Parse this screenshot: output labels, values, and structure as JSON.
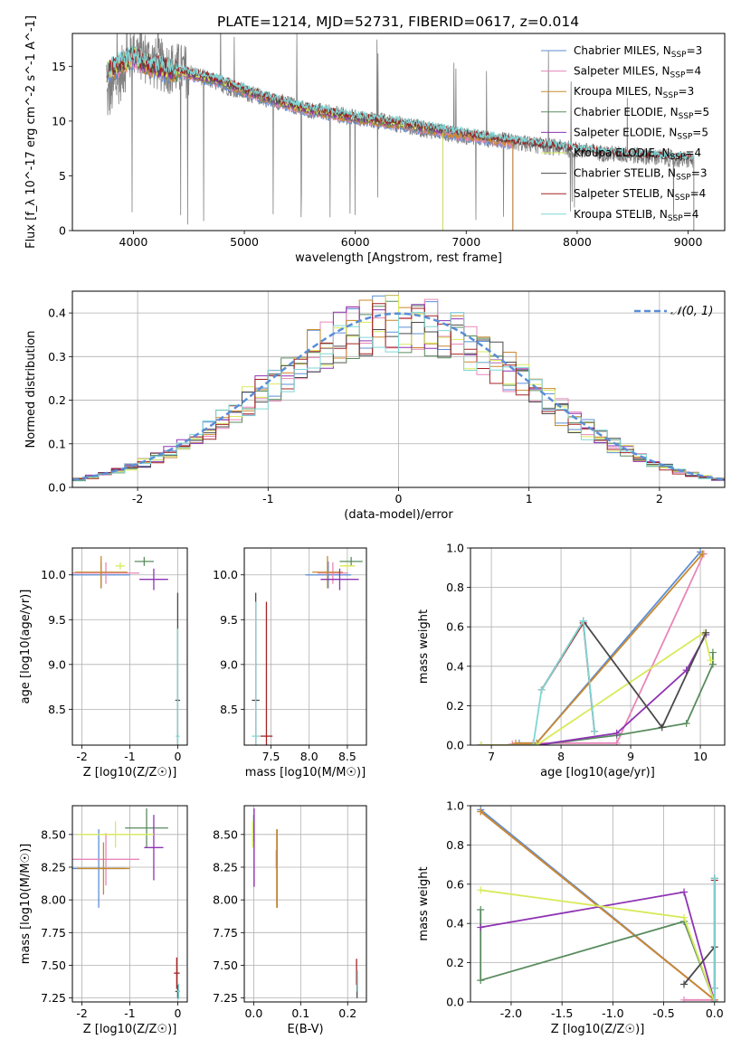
{
  "title": "PLATE=1214, MJD=52731, FIBERID=0617, z=0.014",
  "colors": {
    "Chabrier MILES": "#5b8ed6",
    "Salpeter MILES": "#e986b8",
    "Kroupa MILES": "#c9892e",
    "Chabrier ELODIE": "#5a8c5f",
    "Salpeter ELODIE": "#8f34b3",
    "Kroupa ELODIE": "#d7ea5a",
    "Chabrier STELIB": "#4a4a4a",
    "Salpeter STELIB": "#a52323",
    "Kroupa STELIB": "#7fd6d6",
    "normal": "#5b8ed6",
    "extra_orange": "#f07c2c"
  },
  "legend_spectrum": [
    {
      "label": "Chabrier MILES, N",
      "sub": "SSP",
      "tail": "=3"
    },
    {
      "label": "Salpeter MILES, N",
      "sub": "SSP",
      "tail": "=4"
    },
    {
      "label": "Kroupa MILES, N",
      "sub": "SSP",
      "tail": "=3"
    },
    {
      "label": "Chabrier ELODIE, N",
      "sub": "SSP",
      "tail": "=5"
    },
    {
      "label": "Salpeter ELODIE, N",
      "sub": "SSP",
      "tail": "=5"
    },
    {
      "label": "Kroupa ELODIE, N",
      "sub": "SSP",
      "tail": "=4"
    },
    {
      "label": "Chabrier STELIB, N",
      "sub": "SSP",
      "tail": "=3"
    },
    {
      "label": "Salpeter STELIB, N",
      "sub": "SSP",
      "tail": "=4"
    },
    {
      "label": "Kroupa STELIB, N",
      "sub": "SSP",
      "tail": "=4"
    }
  ],
  "legend_hist": "𝒩(0, 1)",
  "chart_data": [
    {
      "id": "spectrum",
      "type": "line",
      "xlabel": "wavelength [Angstrom, rest frame]",
      "ylabel": "Flux [f_λ 10^-17 erg cm^-2 s^-1 A^-1]",
      "xlim": [
        3450,
        9330
      ],
      "ylim": [
        0,
        18
      ],
      "xticks": [
        4000,
        5000,
        6000,
        7000,
        8000,
        9000
      ],
      "yticks": [
        0,
        5,
        10,
        15
      ],
      "data_continuum": {
        "x": [
          3760,
          3900,
          4000,
          4200,
          4500,
          4800,
          5000,
          5300,
          5600,
          6000,
          6300,
          6600,
          7000,
          7400,
          7800,
          8200,
          8600,
          9050
        ],
        "y": [
          12,
          14.5,
          16.5,
          15.2,
          14.5,
          13.3,
          12.6,
          11.8,
          11,
          10.3,
          9.9,
          9.3,
          8.6,
          8.1,
          7.6,
          7.1,
          6.8,
          6.4
        ]
      },
      "model_continuum": {
        "x": [
          3760,
          3900,
          4000,
          4100,
          4200,
          4500,
          4800,
          5000,
          5300,
          5600,
          6000,
          6300,
          6600,
          6800,
          7000,
          7420
        ],
        "y": [
          14.5,
          15.3,
          15.8,
          15.3,
          14.9,
          14.3,
          13.6,
          12.8,
          11.8,
          11,
          10.3,
          9.9,
          9.4,
          9.1,
          8.7,
          8.1
        ]
      },
      "model_ends": {
        "Chabrier MILES": 7420,
        "Salpeter MILES": 7420,
        "Kroupa MILES": 7420,
        "Chabrier ELODIE": 6790,
        "Salpeter ELODIE": 6790,
        "Kroupa ELODIE": 6790,
        "Chabrier STELIB": 9050,
        "Salpeter STELIB": 9050,
        "Kroupa STELIB": 9050
      }
    },
    {
      "id": "residual_histogram",
      "type": "histogram",
      "xlabel": "(data-model)/error",
      "ylabel": "Normed distribution",
      "xlim": [
        -2.5,
        2.5
      ],
      "ylim": [
        0,
        0.45
      ],
      "xticks": [
        -2,
        -1,
        0,
        1,
        2
      ],
      "yticks": [
        0.0,
        0.1,
        0.2,
        0.3,
        0.4
      ],
      "bin_width": 0.1,
      "normal": {
        "mean": 0,
        "sigma": 1,
        "style": "dashed"
      }
    },
    {
      "id": "age_vs_Z",
      "type": "scatter",
      "xlabel": "Z [log10(Z/Z☉)]",
      "ylabel": "age [log10(age/yr)]",
      "xlim": [
        -2.2,
        0.2
      ],
      "ylim": [
        8.1,
        10.3
      ],
      "xticks": [
        -2,
        -1,
        0
      ],
      "yticks": [
        8.5,
        9.0,
        9.5,
        10.0
      ],
      "points": [
        {
          "name": "Chabrier MILES",
          "x": -1.6,
          "y": 10.0,
          "xerr": 0.6,
          "yerr": 0.15
        },
        {
          "name": "Salpeter MILES",
          "x": -1.5,
          "y": 10.02,
          "xerr": 0.7,
          "yerr": 0.12
        },
        {
          "name": "Kroupa MILES",
          "x": -1.6,
          "y": 10.03,
          "xerr": 0.55,
          "yerr": 0.18
        },
        {
          "name": "Chabrier ELODIE",
          "x": -0.7,
          "y": 10.15,
          "xerr": 0.2,
          "yerr": 0.05
        },
        {
          "name": "Salpeter ELODIE",
          "x": -0.5,
          "y": 9.95,
          "xerr": 0.3,
          "yerr": 0.12
        },
        {
          "name": "Kroupa ELODIE",
          "x": -1.2,
          "y": 10.1,
          "xerr": 0.1,
          "yerr": 0.04
        },
        {
          "name": "Chabrier STELIB",
          "x": 0,
          "y": 8.6,
          "xerr": 0.05,
          "yerr": 1.2
        },
        {
          "name": "Kroupa STELIB",
          "x": 0,
          "y": 8.2,
          "xerr": 0.04,
          "yerr": 1.2
        }
      ]
    },
    {
      "id": "age_vs_mass",
      "type": "scatter",
      "xlabel": "mass [log10(M/M☉)]",
      "xlim": [
        7.15,
        8.75
      ],
      "ylim": [
        8.1,
        10.3
      ],
      "xticks": [
        7.5,
        8.0,
        8.5
      ],
      "yticks": [
        8.5,
        9.0,
        9.5,
        10.0
      ],
      "points": [
        {
          "name": "Chabrier MILES",
          "x": 8.25,
          "y": 10.0,
          "xerr": 0.3,
          "yerr": 0.15
        },
        {
          "name": "Salpeter MILES",
          "x": 8.31,
          "y": 10.02,
          "xerr": 0.2,
          "yerr": 0.12
        },
        {
          "name": "Kroupa MILES",
          "x": 8.24,
          "y": 10.03,
          "xerr": 0.2,
          "yerr": 0.18
        },
        {
          "name": "Chabrier ELODIE",
          "x": 8.55,
          "y": 10.15,
          "xerr": 0.15,
          "yerr": 0.05
        },
        {
          "name": "Salpeter ELODIE",
          "x": 8.4,
          "y": 9.95,
          "xerr": 0.25,
          "yerr": 0.12
        },
        {
          "name": "Kroupa ELODIE",
          "x": 8.5,
          "y": 10.1,
          "xerr": 0.1,
          "yerr": 0.04
        },
        {
          "name": "Chabrier STELIB",
          "x": 7.3,
          "y": 8.6,
          "xerr": 0.05,
          "yerr": 1.2
        },
        {
          "name": "Salpeter STELIB",
          "x": 7.44,
          "y": 8.2,
          "xerr": 0.08,
          "yerr": 1.5
        },
        {
          "name": "Kroupa STELIB",
          "x": 7.3,
          "y": 8.2,
          "xerr": 0.05,
          "yerr": 1.5
        }
      ]
    },
    {
      "id": "weight_vs_age",
      "type": "line",
      "xlabel": "age [log10(age/yr)]",
      "ylabel": "mass weight",
      "xlim": [
        6.7,
        10.35
      ],
      "ylim": [
        0,
        1
      ],
      "xticks": [
        7,
        8,
        9,
        10
      ],
      "yticks": [
        0.0,
        0.2,
        0.4,
        0.6,
        0.8,
        1.0
      ],
      "series": [
        {
          "name": "Chabrier MILES",
          "x": [
            7.4,
            7.65,
            10.0
          ],
          "y": [
            0.01,
            0.01,
            0.98
          ]
        },
        {
          "name": "Salpeter MILES",
          "x": [
            7.3,
            7.6,
            8.8,
            10.05
          ],
          "y": [
            0.005,
            0.01,
            0.01,
            0.97
          ]
        },
        {
          "name": "Kroupa MILES",
          "x": [
            7.35,
            7.65,
            10.03
          ],
          "y": [
            0.01,
            0.01,
            0.97
          ]
        },
        {
          "name": "Chabrier ELODIE",
          "x": [
            6.85,
            7.65,
            8.8,
            9.8,
            10.18,
            10.18
          ],
          "y": [
            0.0,
            0.0,
            0.05,
            0.11,
            0.41,
            0.47
          ]
        },
        {
          "name": "Salpeter ELODIE",
          "x": [
            6.85,
            7.65,
            8.8,
            9.8,
            10.08
          ],
          "y": [
            0.0,
            0.0,
            0.06,
            0.38,
            0.56
          ]
        },
        {
          "name": "Kroupa ELODIE",
          "x": [
            6.85,
            7.65,
            10.05,
            10.15
          ],
          "y": [
            0.0,
            0.0,
            0.57,
            0.43
          ]
        },
        {
          "name": "Chabrier STELIB",
          "x": [
            7.72,
            8.32,
            9.45,
            10.08
          ],
          "y": [
            0.28,
            0.63,
            0.09,
            0.57
          ]
        },
        {
          "name": "Salpeter STELIB",
          "x": [
            7.72,
            8.32,
            8.48
          ],
          "y": [
            0.28,
            0.62,
            0.07
          ]
        },
        {
          "name": "Kroupa STELIB",
          "x": [
            7.6,
            7.72,
            8.32,
            8.48
          ],
          "y": [
            0.0,
            0.28,
            0.63,
            0.07
          ]
        }
      ]
    },
    {
      "id": "mass_vs_Z",
      "type": "scatter",
      "xlabel": "Z [log10(Z/Z☉)]",
      "ylabel": "mass [log10(M/M☉)]",
      "xlim": [
        -2.2,
        0.2
      ],
      "ylim": [
        7.22,
        8.72
      ],
      "xticks": [
        -2,
        -1,
        0
      ],
      "yticks": [
        7.25,
        7.5,
        7.75,
        8.0,
        8.25,
        8.5
      ],
      "points": [
        {
          "name": "Chabrier MILES",
          "x": -1.65,
          "y": 8.24,
          "xerr": 0.55,
          "yerr": 0.3
        },
        {
          "name": "Salpeter MILES",
          "x": -1.5,
          "y": 8.31,
          "xerr": 0.7,
          "yerr": 0.2
        },
        {
          "name": "Kroupa MILES",
          "x": -1.55,
          "y": 8.24,
          "xerr": 0.55,
          "yerr": 0.2
        },
        {
          "name": "Chabrier ELODIE",
          "x": -0.65,
          "y": 8.55,
          "xerr": 0.45,
          "yerr": 0.15
        },
        {
          "name": "Salpeter ELODIE",
          "x": -0.5,
          "y": 8.4,
          "xerr": 0.2,
          "yerr": 0.25
        },
        {
          "name": "Kroupa ELODIE",
          "x": -1.3,
          "y": 8.5,
          "xerr": 0.8,
          "yerr": 0.1
        },
        {
          "name": "Chabrier STELIB",
          "x": 0,
          "y": 7.3,
          "xerr": 0.05,
          "yerr": 0.05
        },
        {
          "name": "Salpeter STELIB",
          "x": -0.02,
          "y": 7.44,
          "xerr": 0.06,
          "yerr": 0.12
        },
        {
          "name": "Kroupa STELIB",
          "x": 0.02,
          "y": 7.3,
          "xerr": 0.03,
          "yerr": 0.06
        }
      ]
    },
    {
      "id": "mass_vs_EBV",
      "type": "scatter",
      "xlabel": "E(B-V)",
      "xlim": [
        -0.02,
        0.24
      ],
      "ylim": [
        7.22,
        8.72
      ],
      "xticks": [
        0.0,
        0.1,
        0.2
      ],
      "yticks": [
        7.25,
        7.5,
        7.75,
        8.0,
        8.25,
        8.5
      ],
      "points": [
        {
          "name": "Chabrier MILES",
          "x": 0.05,
          "y": 8.24,
          "xerr": 0.0,
          "yerr": 0.3
        },
        {
          "name": "Salpeter MILES",
          "x": 0.048,
          "y": 8.31,
          "xerr": 0.0,
          "yerr": 0.07
        },
        {
          "name": "Kroupa MILES",
          "x": 0.049,
          "y": 8.24,
          "xerr": 0.0,
          "yerr": 0.3
        },
        {
          "name": "Chabrier ELODIE",
          "x": 0.0,
          "y": 8.55,
          "xerr": 0.0,
          "yerr": 0.1
        },
        {
          "name": "Salpeter ELODIE",
          "x": 0.001,
          "y": 8.4,
          "xerr": 0.0,
          "yerr": 0.3
        },
        {
          "name": "Kroupa ELODIE",
          "x": -0.002,
          "y": 8.5,
          "xerr": 0.0,
          "yerr": 0.1
        },
        {
          "name": "Chabrier STELIB",
          "x": 0.22,
          "y": 7.3,
          "xerr": 0.0,
          "yerr": 0.05
        },
        {
          "name": "Salpeter STELIB",
          "x": 0.219,
          "y": 7.45,
          "xerr": 0.0,
          "yerr": 0.1
        },
        {
          "name": "Kroupa STELIB",
          "x": 0.221,
          "y": 7.38,
          "xerr": 0.0,
          "yerr": 0.08
        }
      ]
    },
    {
      "id": "weight_vs_Z",
      "type": "line",
      "xlabel": "Z [log10(Z/Z☉)]",
      "ylabel": "mass weight",
      "xlim": [
        -2.4,
        0.1
      ],
      "ylim": [
        0,
        1
      ],
      "xticks": [
        -2.0,
        -1.5,
        -1.0,
        -0.5,
        0.0
      ],
      "yticks": [
        0.0,
        0.2,
        0.4,
        0.6,
        0.8,
        1.0
      ],
      "series": [
        {
          "name": "Chabrier MILES",
          "x": [
            -2.3,
            0.0
          ],
          "y": [
            0.98,
            0.01
          ]
        },
        {
          "name": "Salpeter MILES",
          "x": [
            -2.3,
            0.0,
            -0.3,
            0.0
          ],
          "y": [
            0.97,
            0.01,
            0.01,
            0.01
          ]
        },
        {
          "name": "Kroupa MILES",
          "x": [
            -2.3,
            0.0
          ],
          "y": [
            0.97,
            0.01
          ]
        },
        {
          "name": "Chabrier ELODIE",
          "x": [
            -2.3,
            -2.3,
            -0.3,
            0.0
          ],
          "y": [
            0.47,
            0.11,
            0.41,
            0.0
          ]
        },
        {
          "name": "Salpeter ELODIE",
          "x": [
            -2.3,
            -0.3,
            0.0
          ],
          "y": [
            0.38,
            0.56,
            0.0
          ]
        },
        {
          "name": "Kroupa ELODIE",
          "x": [
            -2.3,
            -0.3,
            0.0
          ],
          "y": [
            0.57,
            0.43,
            0.0
          ]
        },
        {
          "name": "Chabrier STELIB",
          "x": [
            -0.3,
            0.0,
            0.0,
            0.0
          ],
          "y": [
            0.09,
            0.28,
            0.63,
            0.0
          ]
        },
        {
          "name": "Salpeter STELIB",
          "x": [
            0.0,
            0.0
          ],
          "y": [
            0.62,
            0.07
          ]
        },
        {
          "name": "Kroupa STELIB",
          "x": [
            0.0,
            0.0,
            0.0
          ],
          "y": [
            0.63,
            0.07,
            0.0
          ]
        }
      ]
    }
  ]
}
